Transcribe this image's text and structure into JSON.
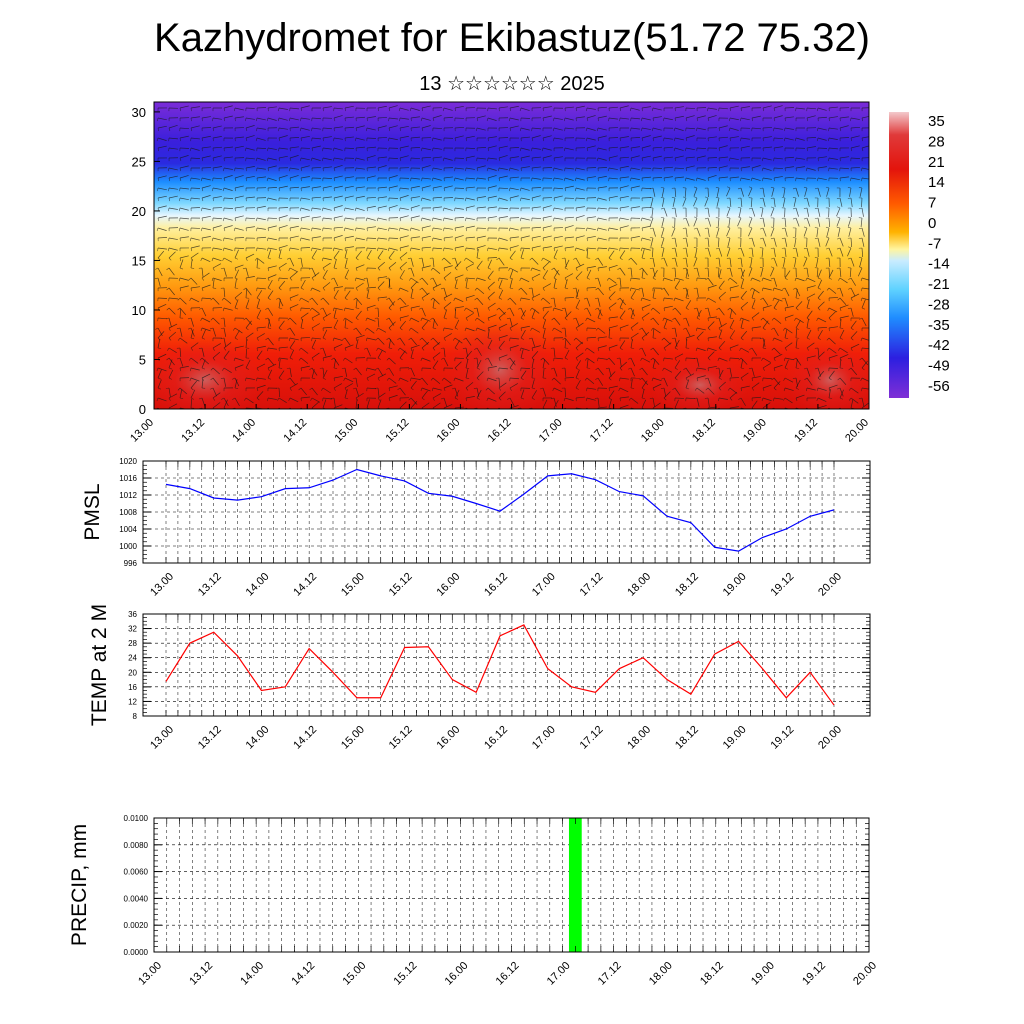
{
  "header": {
    "title": "Kazhydromet for Ekibastuz(51.72 75.32)",
    "subtitle": "13 ☆☆☆☆☆☆ 2025"
  },
  "colors": {
    "colorbar_stops": [
      "#7f2fd6",
      "#2c1fe0",
      "#1f8cff",
      "#5fd2ff",
      "#c9ecff",
      "#fff5a0",
      "#ffb300",
      "#ff5a00",
      "#e3140c",
      "#e03a3a",
      "#f3c9cc"
    ],
    "pmsl_line": "#0000ff",
    "temp_line": "#ff0000",
    "precip_bar": "#00ff00"
  },
  "chart_data": [
    {
      "type": "heatmap",
      "name": "cross-section",
      "ylim": [
        0,
        31
      ],
      "yticks": [
        0,
        5,
        10,
        15,
        20,
        25,
        30
      ],
      "xlim": [
        0,
        14
      ],
      "xticks": [
        "13.00",
        "13.12",
        "14.00",
        "14.12",
        "15.00",
        "15.12",
        "16.00",
        "16.12",
        "17.00",
        "17.12",
        "18.00",
        "18.12",
        "19.00",
        "19.12",
        "20.00"
      ],
      "colorbar_labels": [
        "35",
        "28",
        "21",
        "14",
        "7",
        "0",
        "-7",
        "-14",
        "-21",
        "-28",
        "-35",
        "-42",
        "-49",
        "-56"
      ],
      "wind_barbs": true
    },
    {
      "type": "line",
      "ylabel": "PMSL",
      "ylim": [
        996,
        1020
      ],
      "yticks": [
        "996",
        "1000",
        "1004",
        "1008",
        "1012",
        "1016",
        "1020"
      ],
      "xticks": [
        "13.00",
        "13.12",
        "14.00",
        "14.12",
        "15.00",
        "15.12",
        "16.00",
        "16.12",
        "17.00",
        "17.12",
        "18.00",
        "18.12",
        "19.00",
        "19.12",
        "20.00"
      ],
      "x": [
        0,
        0.5,
        1,
        1.5,
        2,
        2.5,
        3,
        3.5,
        4,
        4.5,
        5,
        5.5,
        6,
        6.5,
        7,
        7.5,
        8,
        8.5,
        9,
        9.5,
        10,
        10.5,
        11,
        11.5,
        12,
        12.5,
        13,
        13.5,
        14
      ],
      "series": [
        {
          "values": [
            1014.5,
            1013.5,
            1011.3,
            1010.8,
            1011.6,
            1013.5,
            1013.7,
            1015.5,
            1018.0,
            1016.5,
            1015.3,
            1012.4,
            1011.7,
            1010.0,
            1008.2,
            1012.2,
            1016.5,
            1017.0,
            1015.6,
            1012.8,
            1011.8,
            1007.0,
            1005.5,
            999.7,
            998.8,
            1002.0,
            1004.0,
            1007.0,
            1008.5
          ]
        }
      ],
      "grid": true
    },
    {
      "type": "line",
      "ylabel": "TEMP at 2 M",
      "ylim": [
        8,
        36
      ],
      "yticks": [
        "8",
        "12",
        "16",
        "20",
        "24",
        "28",
        "32",
        "36"
      ],
      "xticks": [
        "13.00",
        "13.12",
        "14.00",
        "14.12",
        "15.00",
        "15.12",
        "16.00",
        "16.12",
        "17.00",
        "17.12",
        "18.00",
        "18.12",
        "19.00",
        "19.12",
        "20.00"
      ],
      "x": [
        0,
        0.5,
        1,
        1.5,
        2,
        2.5,
        3,
        3.5,
        4,
        4.5,
        5,
        5.5,
        6,
        6.5,
        7,
        7.5,
        8,
        8.5,
        9,
        9.5,
        10,
        10.5,
        11,
        11.5,
        12,
        12.5,
        13,
        13.5,
        14
      ],
      "series": [
        {
          "values": [
            17.5,
            28.0,
            31.0,
            24.5,
            15.0,
            16.0,
            26.5,
            20.0,
            13.0,
            13.0,
            26.8,
            27.0,
            18.0,
            14.5,
            30.0,
            33.0,
            21.0,
            16.0,
            14.5,
            21.0,
            24.0,
            18.0,
            14.0,
            25.0,
            28.5,
            21.0,
            13.0,
            20.0,
            11.0
          ]
        }
      ],
      "grid": true
    },
    {
      "type": "bar",
      "ylabel": "PRECIP, mm",
      "ylim": [
        0,
        0.01
      ],
      "yticks": [
        "0.0000",
        "0.0020",
        "0.0040",
        "0.0060",
        "0.0080",
        "0.0100"
      ],
      "xticks": [
        "13.00",
        "13.12",
        "14.00",
        "14.12",
        "15.00",
        "15.12",
        "16.00",
        "16.12",
        "17.00",
        "17.12",
        "18.00",
        "18.12",
        "19.00",
        "19.12",
        "20.00"
      ],
      "bars": [
        {
          "x": 8.25,
          "value": 0.01
        }
      ],
      "grid": true
    }
  ]
}
